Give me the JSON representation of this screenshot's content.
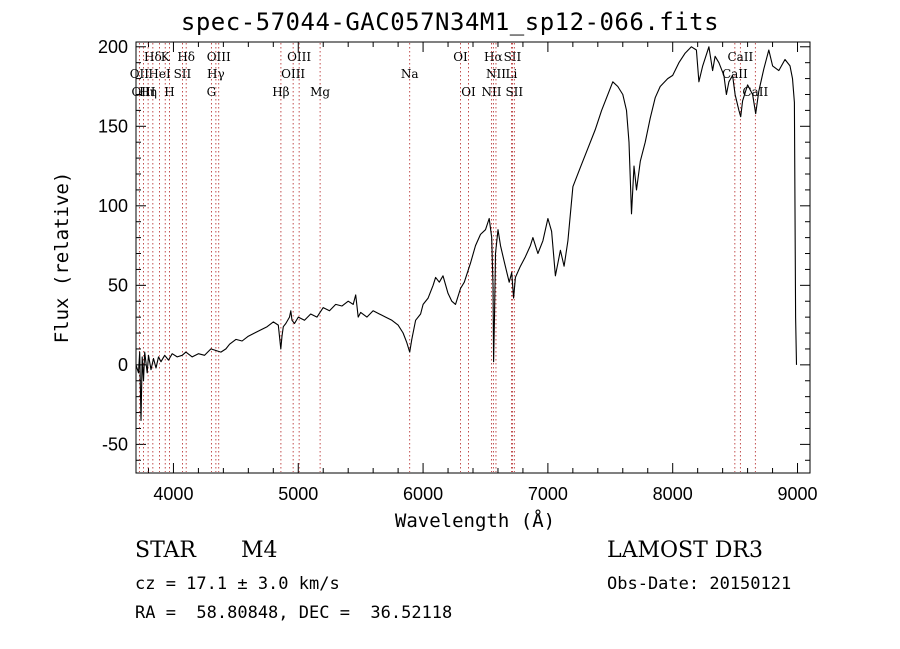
{
  "chart_data": {
    "type": "line",
    "title": "spec-57044-GAC057N34M1_sp12-066.fits",
    "xlabel": "Wavelength (Å)",
    "ylabel": "Flux (relative)",
    "xlim": [
      3700,
      9100
    ],
    "ylim": [
      -68,
      203
    ],
    "xticks": [
      4000,
      5000,
      6000,
      7000,
      8000,
      9000
    ],
    "yticks": [
      -50,
      0,
      50,
      100,
      150,
      200
    ],
    "lines": [
      {
        "label": "Hδ",
        "x": 3835,
        "row": 0
      },
      {
        "label": "K",
        "x": 3934,
        "row": 0
      },
      {
        "label": "Hδ",
        "x": 4102,
        "row": 0
      },
      {
        "label": "OIII",
        "x": 4363,
        "row": 0
      },
      {
        "label": "OIII",
        "x": 5007,
        "row": 0
      },
      {
        "label": "OI",
        "x": 6300,
        "row": 0
      },
      {
        "label": "Hα",
        "x": 6563,
        "row": 0
      },
      {
        "label": "SII",
        "x": 6716,
        "row": 0
      },
      {
        "label": "CaII",
        "x": 8542,
        "row": 0
      },
      {
        "label": "OII",
        "x": 3727,
        "row": 1
      },
      {
        "label": "HeI",
        "x": 3889,
        "row": 1
      },
      {
        "label": "SII",
        "x": 4072,
        "row": 1
      },
      {
        "label": "Hγ",
        "x": 4340,
        "row": 1
      },
      {
        "label": "OIII",
        "x": 4959,
        "row": 1
      },
      {
        "label": "Na",
        "x": 5893,
        "row": 1
      },
      {
        "label": "NII",
        "x": 6584,
        "row": 1
      },
      {
        "label": "Li",
        "x": 6708,
        "row": 1
      },
      {
        "label": "CaII",
        "x": 8498,
        "row": 1
      },
      {
        "label": "OIII",
        "x": 3760,
        "row": 2
      },
      {
        "label": "Hη",
        "x": 3797,
        "row": 2
      },
      {
        "label": "H",
        "x": 3968,
        "row": 2
      },
      {
        "label": "G",
        "x": 4304,
        "row": 2
      },
      {
        "label": "Hβ",
        "x": 4861,
        "row": 2
      },
      {
        "label": "Mg",
        "x": 5175,
        "row": 2
      },
      {
        "label": "OI",
        "x": 6364,
        "row": 2
      },
      {
        "label": "NII",
        "x": 6548,
        "row": 2
      },
      {
        "label": "SII",
        "x": 6731,
        "row": 2
      },
      {
        "label": "CaII",
        "x": 8662,
        "row": 2
      }
    ],
    "series": [
      {
        "name": "flux",
        "points": [
          [
            3700,
            0
          ],
          [
            3720,
            -5
          ],
          [
            3730,
            8
          ],
          [
            3740,
            -35
          ],
          [
            3750,
            5
          ],
          [
            3760,
            -10
          ],
          [
            3770,
            8
          ],
          [
            3790,
            -5
          ],
          [
            3800,
            6
          ],
          [
            3820,
            -3
          ],
          [
            3840,
            4
          ],
          [
            3860,
            -2
          ],
          [
            3880,
            5
          ],
          [
            3900,
            2
          ],
          [
            3930,
            6
          ],
          [
            3960,
            3
          ],
          [
            3990,
            7
          ],
          [
            4030,
            5
          ],
          [
            4070,
            6
          ],
          [
            4100,
            8
          ],
          [
            4150,
            5
          ],
          [
            4200,
            7
          ],
          [
            4250,
            6
          ],
          [
            4300,
            10
          ],
          [
            4340,
            9
          ],
          [
            4380,
            8
          ],
          [
            4420,
            10
          ],
          [
            4450,
            13
          ],
          [
            4500,
            16
          ],
          [
            4550,
            15
          ],
          [
            4600,
            18
          ],
          [
            4650,
            20
          ],
          [
            4700,
            22
          ],
          [
            4750,
            24
          ],
          [
            4800,
            27
          ],
          [
            4840,
            25
          ],
          [
            4860,
            10
          ],
          [
            4870,
            18
          ],
          [
            4880,
            24
          ],
          [
            4900,
            26
          ],
          [
            4930,
            30
          ],
          [
            4940,
            34
          ],
          [
            4950,
            28
          ],
          [
            4970,
            26
          ],
          [
            5000,
            30
          ],
          [
            5050,
            28
          ],
          [
            5100,
            32
          ],
          [
            5150,
            30
          ],
          [
            5200,
            36
          ],
          [
            5250,
            34
          ],
          [
            5300,
            38
          ],
          [
            5350,
            37
          ],
          [
            5400,
            40
          ],
          [
            5440,
            38
          ],
          [
            5460,
            44
          ],
          [
            5480,
            30
          ],
          [
            5500,
            33
          ],
          [
            5550,
            30
          ],
          [
            5600,
            34
          ],
          [
            5650,
            32
          ],
          [
            5700,
            30
          ],
          [
            5750,
            28
          ],
          [
            5800,
            25
          ],
          [
            5840,
            20
          ],
          [
            5870,
            14
          ],
          [
            5893,
            8
          ],
          [
            5910,
            16
          ],
          [
            5940,
            28
          ],
          [
            5980,
            32
          ],
          [
            6000,
            38
          ],
          [
            6040,
            42
          ],
          [
            6080,
            50
          ],
          [
            6100,
            55
          ],
          [
            6130,
            52
          ],
          [
            6160,
            56
          ],
          [
            6200,
            45
          ],
          [
            6230,
            40
          ],
          [
            6260,
            38
          ],
          [
            6300,
            48
          ],
          [
            6330,
            52
          ],
          [
            6380,
            64
          ],
          [
            6420,
            75
          ],
          [
            6460,
            82
          ],
          [
            6500,
            85
          ],
          [
            6530,
            92
          ],
          [
            6550,
            80
          ],
          [
            6560,
            50
          ],
          [
            6565,
            2
          ],
          [
            6572,
            30
          ],
          [
            6580,
            70
          ],
          [
            6600,
            85
          ],
          [
            6620,
            75
          ],
          [
            6650,
            65
          ],
          [
            6690,
            52
          ],
          [
            6710,
            58
          ],
          [
            6725,
            42
          ],
          [
            6740,
            55
          ],
          [
            6780,
            62
          ],
          [
            6820,
            68
          ],
          [
            6860,
            75
          ],
          [
            6880,
            80
          ],
          [
            6920,
            70
          ],
          [
            6960,
            78
          ],
          [
            7000,
            92
          ],
          [
            7030,
            84
          ],
          [
            7060,
            56
          ],
          [
            7100,
            72
          ],
          [
            7130,
            62
          ],
          [
            7160,
            78
          ],
          [
            7200,
            112
          ],
          [
            7260,
            124
          ],
          [
            7320,
            136
          ],
          [
            7380,
            148
          ],
          [
            7430,
            160
          ],
          [
            7470,
            168
          ],
          [
            7520,
            178
          ],
          [
            7560,
            175
          ],
          [
            7600,
            170
          ],
          [
            7630,
            160
          ],
          [
            7650,
            140
          ],
          [
            7670,
            95
          ],
          [
            7690,
            125
          ],
          [
            7710,
            110
          ],
          [
            7740,
            128
          ],
          [
            7780,
            140
          ],
          [
            7820,
            155
          ],
          [
            7860,
            168
          ],
          [
            7900,
            175
          ],
          [
            7960,
            180
          ],
          [
            8000,
            182
          ],
          [
            8050,
            190
          ],
          [
            8100,
            196
          ],
          [
            8150,
            200
          ],
          [
            8190,
            198
          ],
          [
            8210,
            178
          ],
          [
            8240,
            188
          ],
          [
            8290,
            200
          ],
          [
            8320,
            185
          ],
          [
            8340,
            194
          ],
          [
            8370,
            190
          ],
          [
            8410,
            182
          ],
          [
            8430,
            170
          ],
          [
            8450,
            178
          ],
          [
            8480,
            182
          ],
          [
            8500,
            170
          ],
          [
            8530,
            160
          ],
          [
            8545,
            156
          ],
          [
            8560,
            166
          ],
          [
            8600,
            176
          ],
          [
            8640,
            170
          ],
          [
            8665,
            158
          ],
          [
            8690,
            172
          ],
          [
            8730,
            186
          ],
          [
            8770,
            198
          ],
          [
            8800,
            188
          ],
          [
            8850,
            185
          ],
          [
            8900,
            192
          ],
          [
            8940,
            188
          ],
          [
            8960,
            180
          ],
          [
            8975,
            165
          ],
          [
            8985,
            30
          ],
          [
            8992,
            0
          ]
        ]
      }
    ]
  },
  "info": {
    "object_class": "STAR",
    "subclass": "M4",
    "survey": "LAMOST DR3",
    "cz": "cz = 17.1 ± 3.0 km/s",
    "obs_date": "Obs-Date: 20150121",
    "coords": "RA =  58.80848, DEC =  36.52118"
  }
}
